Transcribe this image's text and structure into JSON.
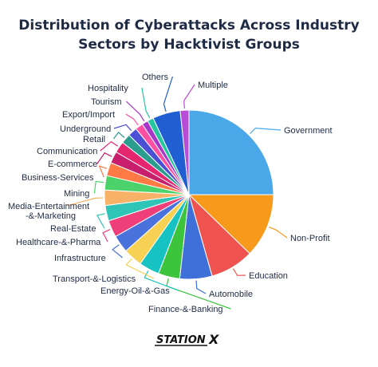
{
  "title_line1": "Distribution of Cyberattacks Across Industry",
  "title_line2": "Sectors by Hacktivist Groups",
  "brand": {
    "name_main": "STATION",
    "name_x": "X"
  },
  "chart_data": {
    "type": "pie",
    "categories": [
      "Government",
      "Non-Profit",
      "Education",
      "Automobile",
      "Finance-&-Banking",
      "Energy-Oil-&-Gas",
      "Transport-&-Logistics",
      "Infrastructure",
      "Healthcare-&-Pharma",
      "Real-Estate",
      "Media-Entertainment-&-Marketing",
      "Mining",
      "Business-Services",
      "E-commerce",
      "Communication",
      "Retail",
      "Underground",
      "Export/Import",
      "Tourism",
      "Hospitality",
      "Others",
      "Multiple"
    ],
    "labels": [
      [
        "Government"
      ],
      [
        "Non-Profit"
      ],
      [
        "Education"
      ],
      [
        "Automobile"
      ],
      [
        "Finance-&-Banking"
      ],
      [
        "Energy-Oil-&-Gas"
      ],
      [
        "Transport-&-Logistics"
      ],
      [
        "Infrastructure"
      ],
      [
        "Healthcare-&-Pharma"
      ],
      [
        "Real-Estate"
      ],
      [
        "Media-Entertainment",
        "-&-Marketing"
      ],
      [
        "Mining"
      ],
      [
        "Business-Services"
      ],
      [
        "E-commerce"
      ],
      [
        "Communication"
      ],
      [
        "Retail"
      ],
      [
        "Underground"
      ],
      [
        "Export/Import"
      ],
      [
        "Tourism"
      ],
      [
        "Hospitality"
      ],
      [
        "Others"
      ],
      [
        "Multiple"
      ]
    ],
    "values": [
      25.5,
      12.5,
      8.5,
      6.3,
      4.2,
      4.0,
      3.7,
      3.4,
      3.3,
      3.0,
      3.0,
      2.8,
      2.6,
      2.3,
      2.2,
      1.9,
      1.8,
      1.5,
      1.2,
      1.2,
      5.4,
      1.7
    ],
    "colors": [
      "#4aa8e8",
      "#f79a1c",
      "#ef5350",
      "#3f6fd8",
      "#3dc43d",
      "#16c2c2",
      "#f7d154",
      "#4a72dc",
      "#ee3f7a",
      "#2ec4b6",
      "#f7b267",
      "#4cd26b",
      "#ff7a45",
      "#c71f6c",
      "#e6256f",
      "#2a9d8f",
      "#4a4fd6",
      "#ff4fa3",
      "#a637c9",
      "#26c6a0",
      "#1f5fd1",
      "#b84bd8"
    ],
    "legend": "none"
  }
}
